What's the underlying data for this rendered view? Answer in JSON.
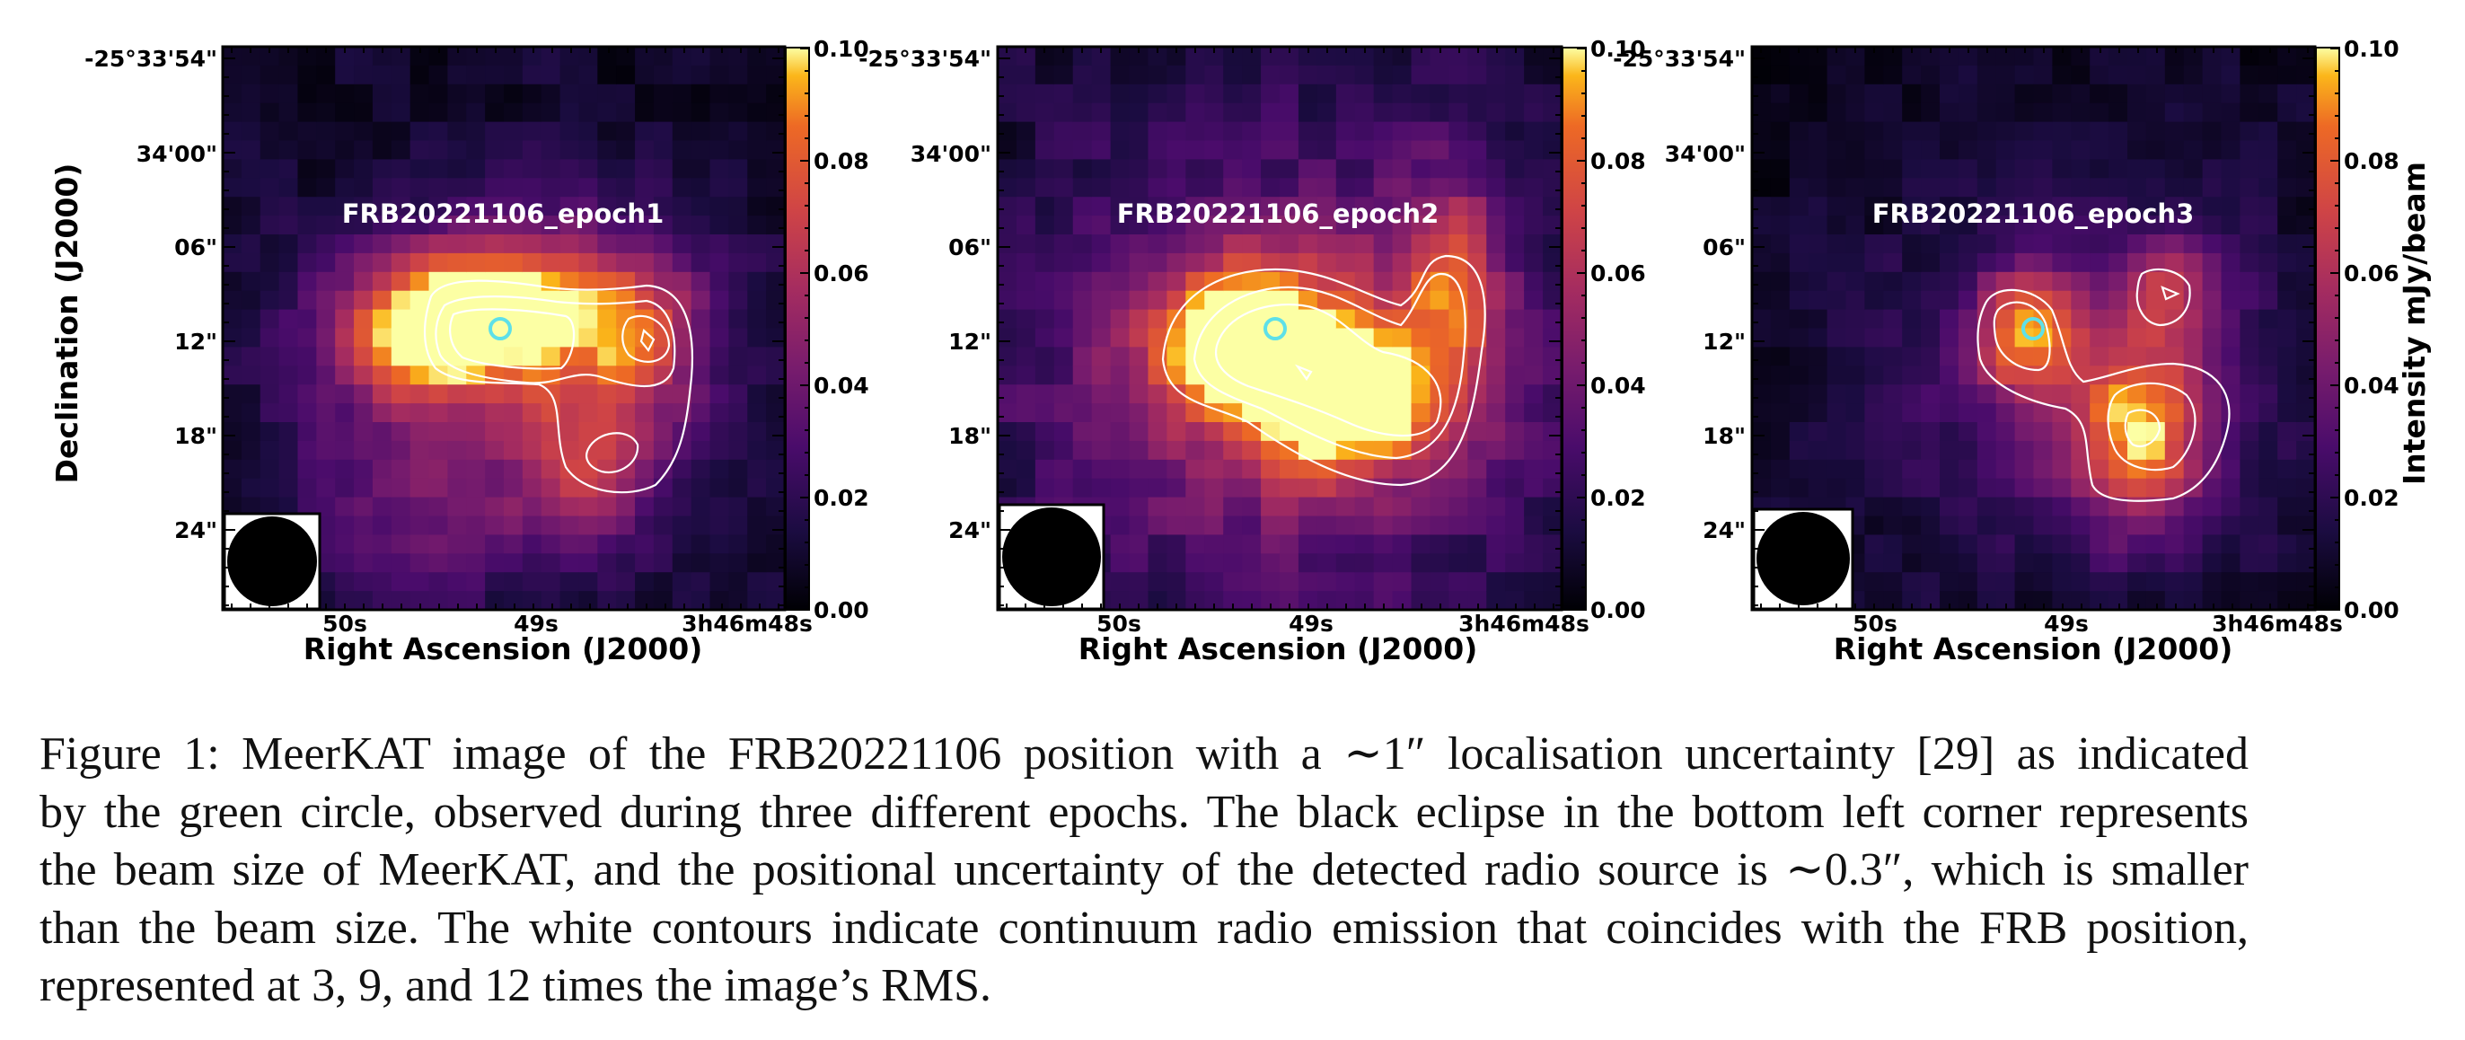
{
  "figure": {
    "panels": [
      {
        "title": "FRB20221106_epoch1"
      },
      {
        "title": "FRB20221106_epoch2"
      },
      {
        "title": "FRB20221106_epoch3"
      }
    ],
    "ra_ticks": [
      "50s",
      "49s",
      "3h46m48s"
    ],
    "dec_ticks": [
      "-25°33'54\"",
      "34'00\"",
      "06\"",
      "12\"",
      "18\"",
      "24\""
    ],
    "colorbar_ticks": [
      "0.00",
      "0.02",
      "0.04",
      "0.06",
      "0.08",
      "0.10"
    ],
    "x_label": "Right Ascension (J2000)",
    "y_label": "Declination (J2000)",
    "colorbar_label": "Intensity mJy/beam",
    "colormap": "inferno",
    "colorbar_range": [
      0,
      0.1
    ],
    "localisation_circle_color": "#5ee0e8",
    "contour_color": "#ffffff",
    "beam_ellipse_color": "#000000"
  },
  "caption": {
    "lines": [
      "Figure 1: MeerKAT image of the FRB20221106 position with a ∼1″ localisation uncertainty [29] as indicated",
      "by the green circle, observed during three different epochs. The black eclipse in the bottom left corner represents",
      "the beam size of MeerKAT, and the positional uncertainty of the detected radio source is ∼0.3″, which is smaller",
      "than the beam size. The white contours indicate continuum radio emission that coincides with the FRB position,",
      "represented at 3, 9, and 12 times the image’s RMS."
    ]
  }
}
